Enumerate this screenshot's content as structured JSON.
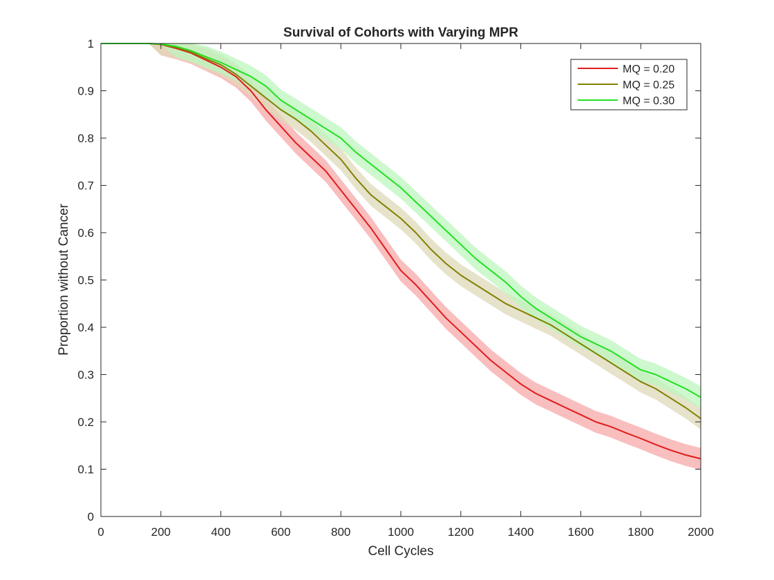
{
  "chart_data": {
    "type": "line",
    "title": "Survival of Cohorts with Varying MPR",
    "xlabel": "Cell Cycles",
    "ylabel": "Proportion without Cancer",
    "xlim": [
      0,
      2000
    ],
    "ylim": [
      0,
      1
    ],
    "xticks": [
      0,
      200,
      400,
      600,
      800,
      1000,
      1200,
      1400,
      1600,
      1800,
      2000
    ],
    "yticks": [
      0,
      0.1,
      0.2,
      0.3,
      0.4,
      0.5,
      0.6,
      0.7,
      0.8,
      0.9,
      1
    ],
    "ytick_labels": [
      "0",
      "0.1",
      "0.2",
      "0.3",
      "0.4",
      "0.5",
      "0.6",
      "0.7",
      "0.8",
      "0.9",
      "1"
    ],
    "grid": false,
    "legend_position": "top-right",
    "band_halfwidth": 0.023,
    "series": [
      {
        "name": "MQ = 0.20",
        "color": "#e01b1b",
        "band_color": "#f7a8a8",
        "x": [
          0,
          160,
          200,
          250,
          300,
          350,
          400,
          450,
          500,
          550,
          600,
          650,
          700,
          750,
          800,
          850,
          900,
          950,
          1000,
          1050,
          1100,
          1150,
          1200,
          1250,
          1300,
          1350,
          1400,
          1450,
          1500,
          1550,
          1600,
          1650,
          1700,
          1750,
          1800,
          1850,
          1900,
          1950,
          2000
        ],
        "y": [
          1,
          1,
          0.998,
          0.99,
          0.98,
          0.965,
          0.95,
          0.93,
          0.9,
          0.86,
          0.825,
          0.79,
          0.76,
          0.73,
          0.69,
          0.65,
          0.61,
          0.565,
          0.52,
          0.49,
          0.455,
          0.42,
          0.39,
          0.36,
          0.33,
          0.305,
          0.28,
          0.26,
          0.245,
          0.23,
          0.215,
          0.2,
          0.19,
          0.177,
          0.165,
          0.152,
          0.14,
          0.13,
          0.122
        ]
      },
      {
        "name": "MQ = 0.25",
        "color": "#808000",
        "band_color": "#ddd9b8",
        "x": [
          0,
          160,
          200,
          250,
          300,
          350,
          400,
          450,
          500,
          550,
          600,
          650,
          700,
          750,
          800,
          850,
          900,
          950,
          1000,
          1050,
          1100,
          1150,
          1200,
          1250,
          1300,
          1350,
          1400,
          1450,
          1500,
          1550,
          1600,
          1650,
          1700,
          1750,
          1800,
          1850,
          1900,
          1950,
          2000
        ],
        "y": [
          1,
          1,
          0.998,
          0.992,
          0.982,
          0.968,
          0.955,
          0.935,
          0.91,
          0.885,
          0.86,
          0.84,
          0.815,
          0.785,
          0.755,
          0.715,
          0.68,
          0.655,
          0.63,
          0.6,
          0.565,
          0.535,
          0.51,
          0.49,
          0.47,
          0.45,
          0.435,
          0.42,
          0.405,
          0.385,
          0.365,
          0.345,
          0.325,
          0.305,
          0.285,
          0.27,
          0.25,
          0.23,
          0.207
        ]
      },
      {
        "name": "MQ = 0.30",
        "color": "#22e022",
        "band_color": "#bdf5bd",
        "x": [
          0,
          160,
          200,
          250,
          300,
          350,
          400,
          450,
          500,
          550,
          600,
          650,
          700,
          750,
          800,
          850,
          900,
          950,
          1000,
          1050,
          1100,
          1150,
          1200,
          1250,
          1300,
          1350,
          1400,
          1450,
          1500,
          1550,
          1600,
          1650,
          1700,
          1750,
          1800,
          1850,
          1900,
          1950,
          2000
        ],
        "y": [
          1,
          1,
          0.999,
          0.994,
          0.985,
          0.972,
          0.96,
          0.945,
          0.93,
          0.91,
          0.88,
          0.86,
          0.84,
          0.82,
          0.8,
          0.77,
          0.745,
          0.72,
          0.695,
          0.665,
          0.635,
          0.605,
          0.575,
          0.545,
          0.52,
          0.495,
          0.465,
          0.44,
          0.42,
          0.4,
          0.38,
          0.365,
          0.35,
          0.33,
          0.31,
          0.3,
          0.285,
          0.27,
          0.252
        ]
      }
    ]
  }
}
